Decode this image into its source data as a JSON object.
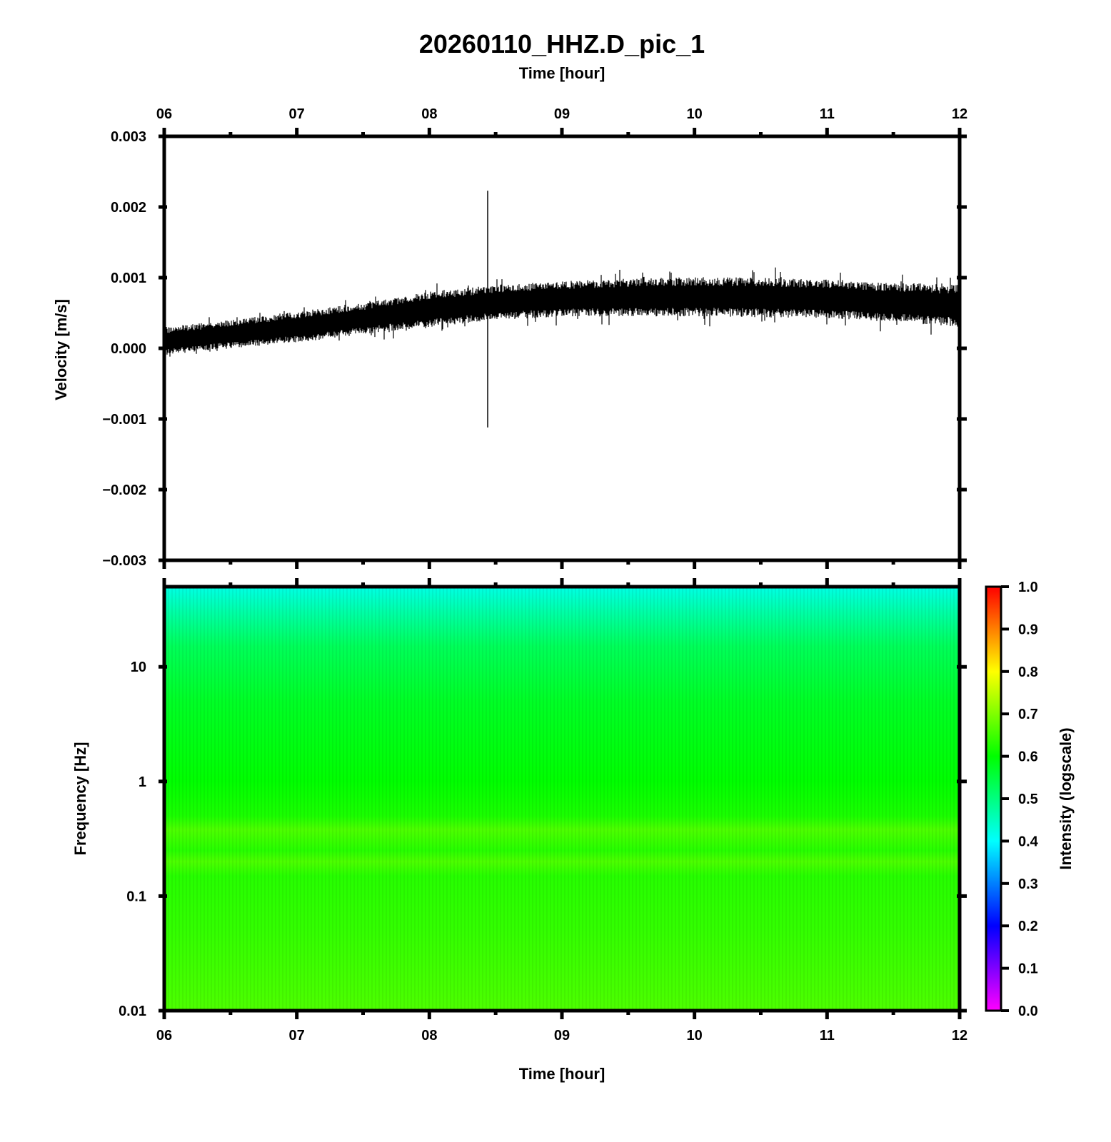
{
  "chart_data": [
    {
      "type": "line",
      "title": "20260110_HHZ.D_pic_1",
      "xlabel": "Time [hour]",
      "ylabel": "Velocity [m/s]",
      "xlim": [
        6,
        12
      ],
      "ylim": [
        -0.003,
        0.003
      ],
      "x_ticks": [
        "06",
        "07",
        "08",
        "09",
        "10",
        "11",
        "12"
      ],
      "y_ticks": [
        "0.003",
        "0.002",
        "0.001",
        "0.000",
        "−0.001",
        "−0.002",
        "−0.003"
      ],
      "series": [
        {
          "x": [
            6.0,
            6.5,
            7.0,
            7.5,
            8.0,
            8.5,
            9.0,
            9.5,
            10.0,
            10.5,
            11.0,
            11.5,
            12.0
          ],
          "center": [
            0.0001,
            0.0002,
            0.0003,
            0.00042,
            0.00055,
            0.00065,
            0.0007,
            0.00072,
            0.00073,
            0.00072,
            0.0007,
            0.00065,
            0.0006
          ],
          "half_range": [
            0.0002,
            0.0002,
            0.00022,
            0.00022,
            0.00025,
            0.00025,
            0.00025,
            0.00027,
            0.00028,
            0.00028,
            0.00028,
            0.00028,
            0.0003
          ],
          "spike": {
            "x": 8.44,
            "ymin": -0.00112,
            "ymax": 0.00223
          }
        }
      ],
      "color": "#000000"
    },
    {
      "type": "heatmap",
      "xlabel": "Time [hour]",
      "ylabel": "Frequency [Hz]",
      "xlim": [
        6,
        12
      ],
      "ylim": [
        0.01,
        50
      ],
      "yscale": "log",
      "x_ticks": [
        "06",
        "07",
        "08",
        "09",
        "10",
        "11",
        "12"
      ],
      "y_ticks": [
        "10",
        "1",
        "0.1",
        "0.01"
      ],
      "intensity_profile": [
        {
          "freq": 0.01,
          "value": 0.66
        },
        {
          "freq": 0.05,
          "value": 0.64
        },
        {
          "freq": 0.15,
          "value": 0.63
        },
        {
          "freq": 0.2,
          "value": 0.66
        },
        {
          "freq": 0.25,
          "value": 0.63
        },
        {
          "freq": 0.38,
          "value": 0.66
        },
        {
          "freq": 0.5,
          "value": 0.62
        },
        {
          "freq": 1,
          "value": 0.6
        },
        {
          "freq": 5,
          "value": 0.57
        },
        {
          "freq": 15,
          "value": 0.53
        },
        {
          "freq": 30,
          "value": 0.47
        },
        {
          "freq": 50,
          "value": 0.42
        }
      ],
      "colorbar": {
        "label": "Intensity (logscale)",
        "range": [
          0.0,
          1.0
        ],
        "ticks": [
          "1.0",
          "0.9",
          "0.8",
          "0.7",
          "0.6",
          "0.5",
          "0.4",
          "0.3",
          "0.2",
          "0.1",
          "0.0"
        ],
        "colors": [
          "#ff00ff",
          "#0000ff",
          "#00ffff",
          "#00ff00",
          "#ffff00",
          "#ff0000"
        ]
      }
    }
  ]
}
